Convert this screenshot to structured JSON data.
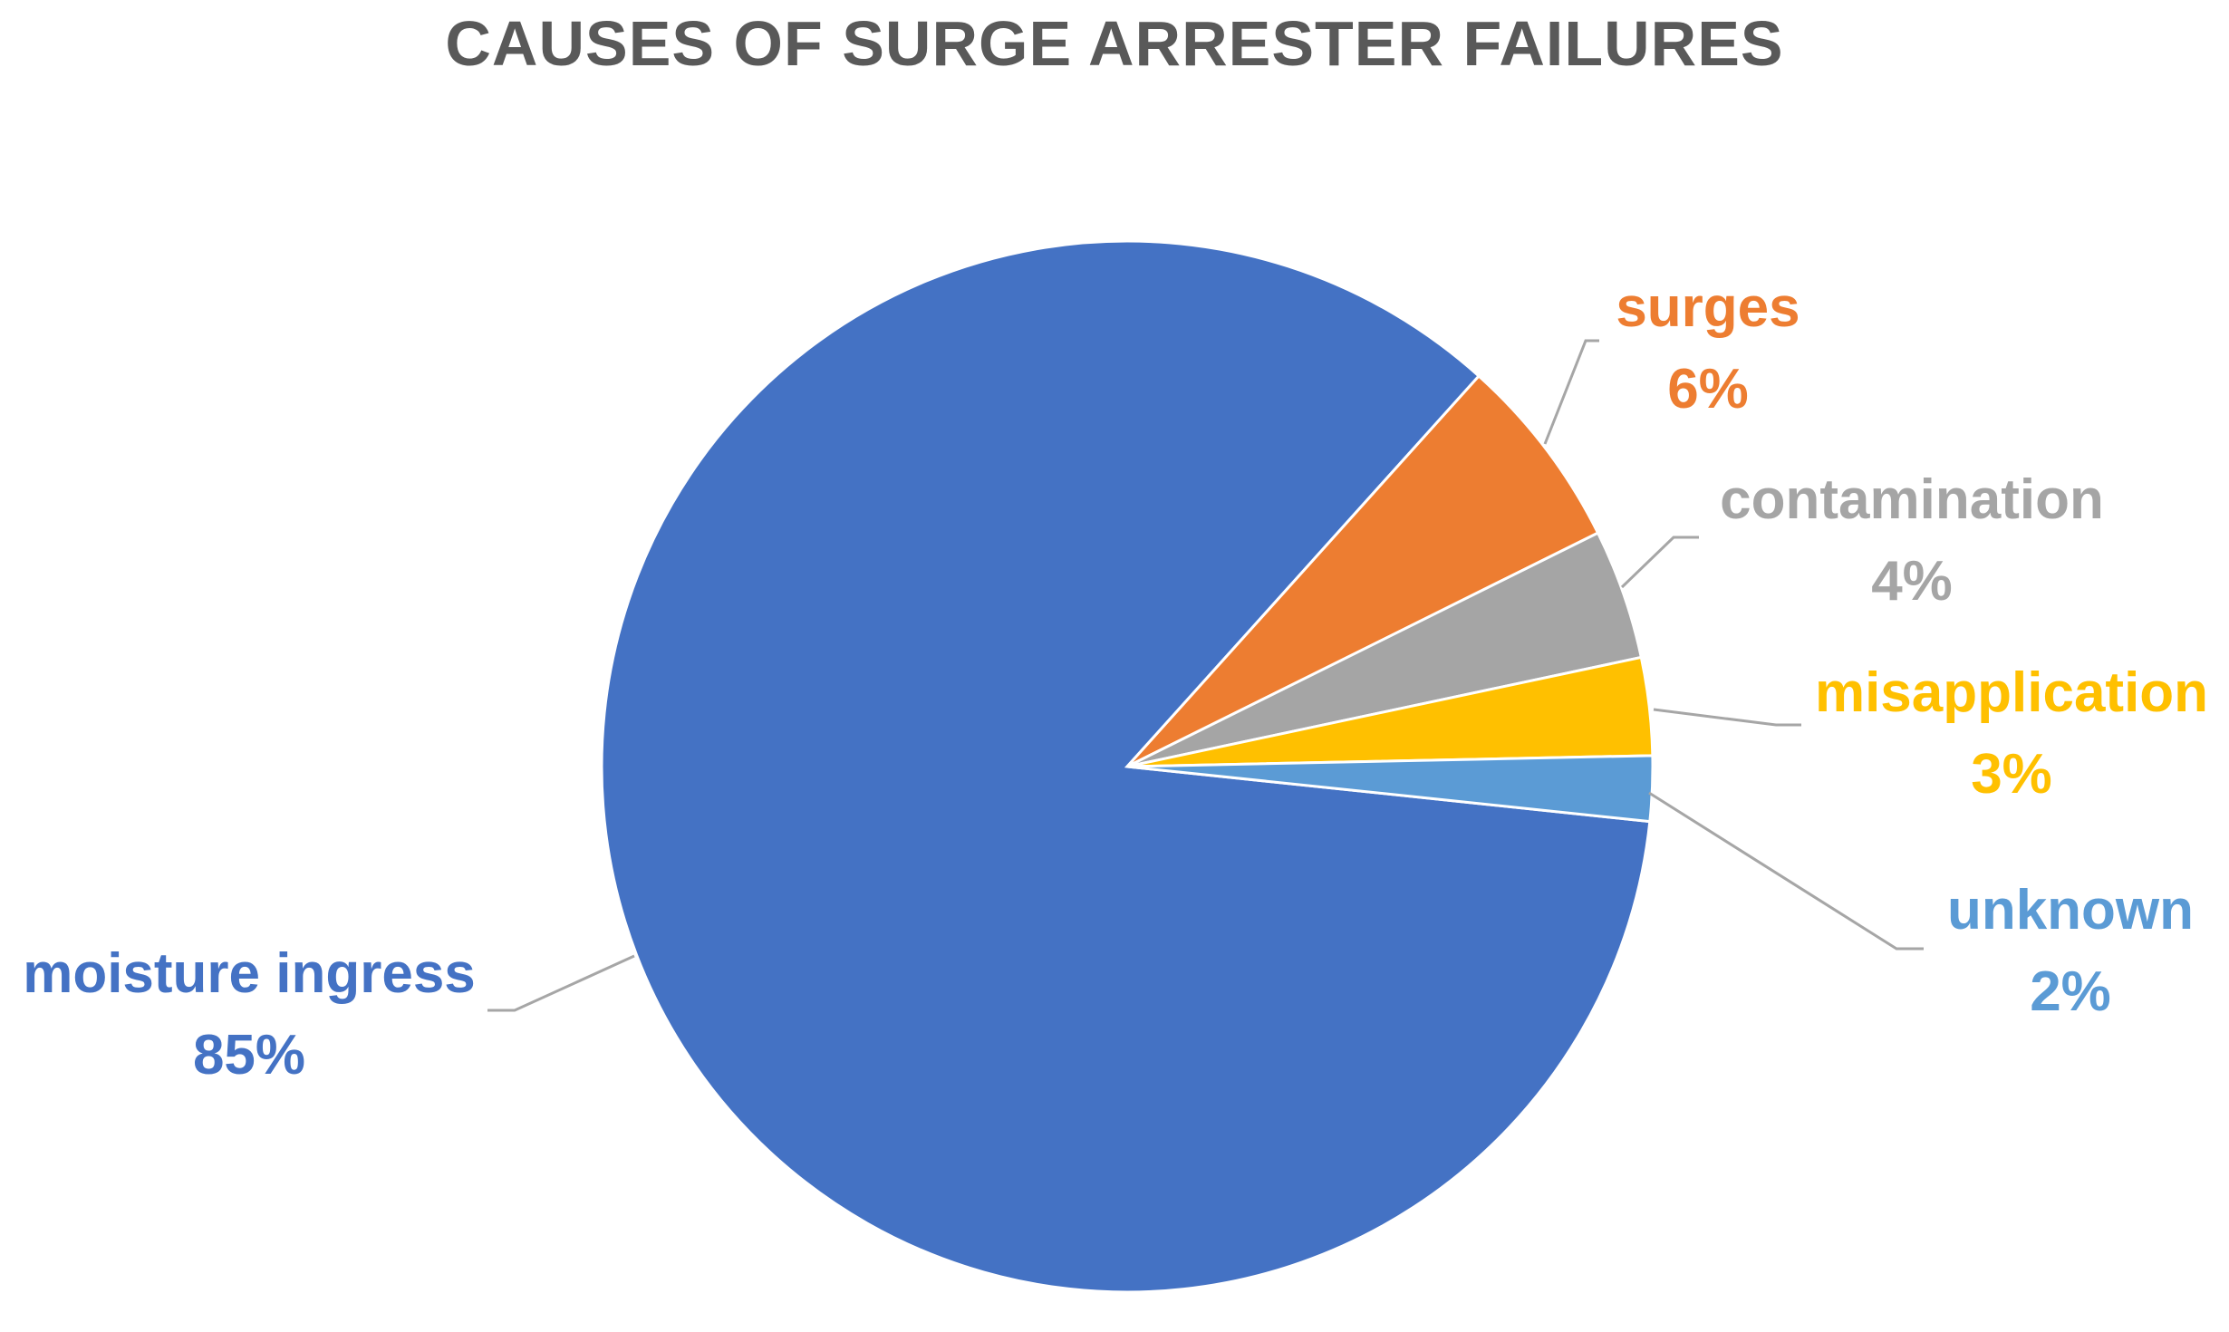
{
  "chart_data": {
    "type": "pie",
    "title": "CAUSES OF SURGE ARRESTER FAILURES",
    "slices": [
      {
        "label": "moisture ingress",
        "value": 85,
        "value_label": "85%",
        "color": "#4472C4"
      },
      {
        "label": "surges",
        "value": 6,
        "value_label": "6%",
        "color": "#ED7D31"
      },
      {
        "label": "contamination",
        "value": 4,
        "value_label": "4%",
        "color": "#A5A5A5"
      },
      {
        "label": "misapplication",
        "value": 3,
        "value_label": "3%",
        "color": "#FFC000"
      },
      {
        "label": "unknown",
        "value": 2,
        "value_label": "2%",
        "color": "#5B9BD5"
      }
    ],
    "legend": "none",
    "data_labels": "outside with leader lines"
  }
}
